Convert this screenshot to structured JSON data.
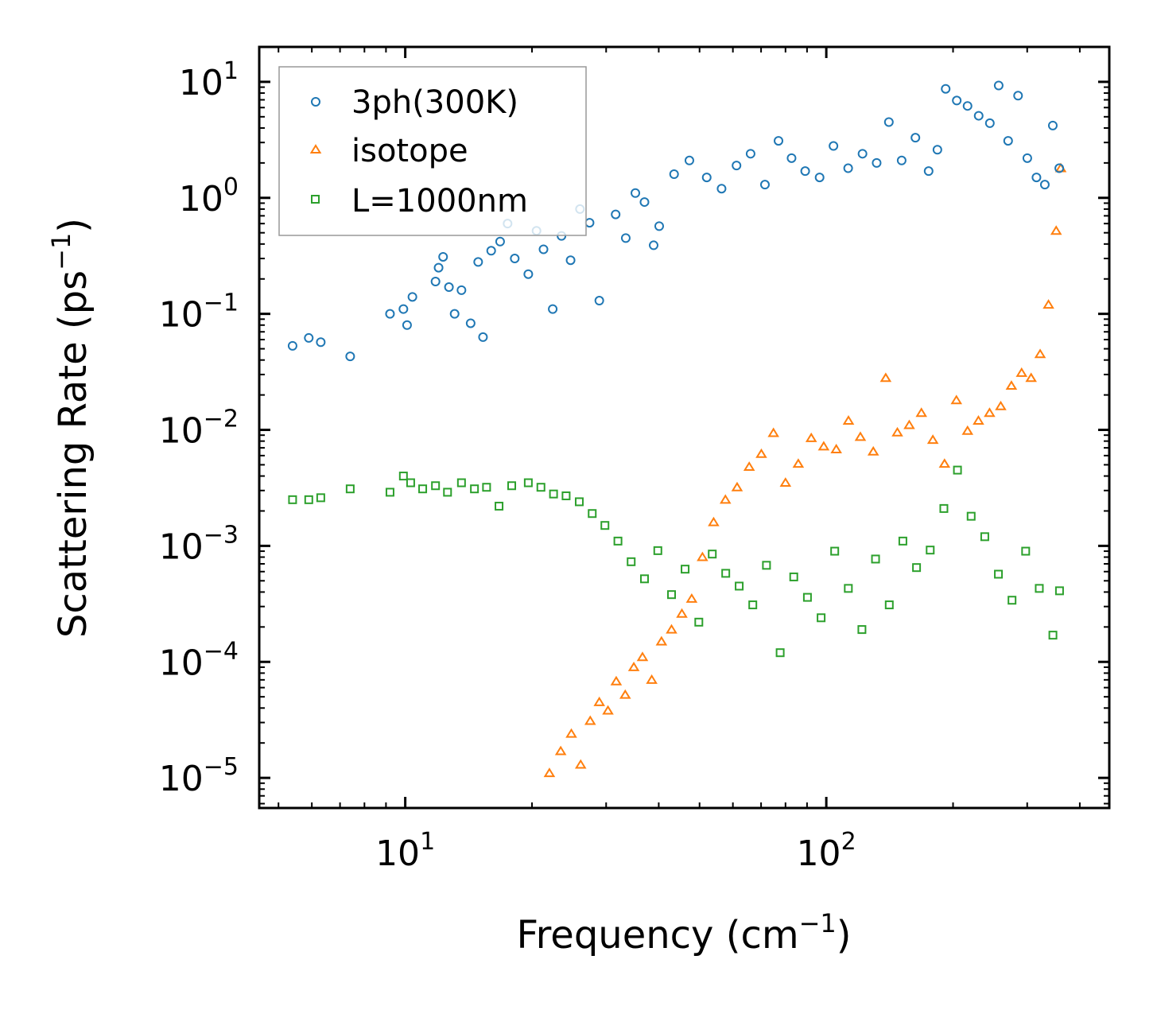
{
  "chart_data": {
    "type": "scatter",
    "xscale": "log",
    "yscale": "log",
    "xlim": [
      4.5,
      470
    ],
    "ylim": [
      5.5e-06,
      20
    ],
    "xlabel": "Frequency",
    "xlabel_unit": "cm",
    "xlabel_exp": "−1",
    "ylabel": "Scattering Rate",
    "ylabel_unit": "ps",
    "ylabel_exp": "−1",
    "x_ticks": [
      {
        "value": 10,
        "base": "10",
        "exp": "1"
      },
      {
        "value": 100,
        "base": "10",
        "exp": "2"
      }
    ],
    "y_ticks": [
      {
        "value": 10,
        "base": "10",
        "exp": "1"
      },
      {
        "value": 1,
        "base": "10",
        "exp": "0"
      },
      {
        "value": 0.1,
        "base": "10",
        "exp": "−1"
      },
      {
        "value": 0.01,
        "base": "10",
        "exp": "−2"
      },
      {
        "value": 0.001,
        "base": "10",
        "exp": "−3"
      },
      {
        "value": 0.0001,
        "base": "10",
        "exp": "−4"
      },
      {
        "value": 1e-05,
        "base": "10",
        "exp": "−5"
      }
    ],
    "legend_position": "top-left",
    "series": [
      {
        "name": "3ph(300K)",
        "marker": "circle",
        "color": "#1f77b4",
        "x": [
          5.4,
          5.9,
          6.3,
          7.4,
          9.2,
          9.9,
          10.1,
          10.4,
          11.8,
          12.0,
          12.3,
          12.7,
          13.1,
          13.6,
          14.3,
          14.9,
          15.3,
          16.0,
          16.8,
          17.5,
          18.2,
          19.6,
          20.5,
          21.3,
          22.4,
          23.5,
          24.7,
          26.0,
          27.4,
          28.9,
          31.6,
          33.4,
          35.2,
          37.0,
          38.9,
          40.1,
          43.5,
          47.3,
          52.0,
          56.4,
          61.2,
          66.1,
          71.5,
          77.0,
          82.7,
          89.1,
          96.4,
          104.0,
          112.7,
          121.9,
          131.7,
          140.8,
          151.0,
          162.8,
          175.0,
          183.6,
          192.1,
          204.1,
          216.5,
          230.1,
          244.6,
          256.7,
          270.3,
          285.4,
          300.2,
          315.6,
          330.4,
          345.1,
          357.5
        ],
        "y": [
          0.053,
          0.062,
          0.057,
          0.043,
          0.1,
          0.11,
          0.08,
          0.14,
          0.19,
          0.25,
          0.31,
          0.17,
          0.1,
          0.16,
          0.083,
          0.28,
          0.063,
          0.35,
          0.42,
          0.6,
          0.3,
          0.22,
          0.52,
          0.36,
          0.11,
          0.47,
          0.29,
          0.8,
          0.61,
          0.13,
          0.72,
          0.45,
          1.1,
          0.92,
          0.39,
          0.57,
          1.6,
          2.1,
          1.5,
          1.2,
          1.9,
          2.4,
          1.3,
          3.1,
          2.2,
          1.7,
          1.5,
          2.8,
          1.8,
          2.4,
          2.0,
          4.5,
          2.1,
          3.3,
          1.7,
          2.6,
          8.7,
          6.9,
          6.2,
          5.1,
          4.4,
          9.3,
          3.1,
          7.6,
          2.2,
          1.5,
          1.3,
          4.2,
          1.8
        ]
      },
      {
        "name": "isotope",
        "marker": "triangle",
        "color": "#ff7f0e",
        "x": [
          22.0,
          23.4,
          24.8,
          26.1,
          27.5,
          28.9,
          30.3,
          31.7,
          33.3,
          34.9,
          36.6,
          38.5,
          40.6,
          42.9,
          45.4,
          47.9,
          50.8,
          54.0,
          57.6,
          61.4,
          65.6,
          70.1,
          74.9,
          80.0,
          85.8,
          92.1,
          98.6,
          105.6,
          112.9,
          120.5,
          129.3,
          138.4,
          147.5,
          157.4,
          168.2,
          179.1,
          190.9,
          203.7,
          216.5,
          229.8,
          244.2,
          259.6,
          275.2,
          291.0,
          306.5,
          322.0,
          337.1,
          351.5,
          360.5
        ],
        "y": [
          1.1e-05,
          1.7e-05,
          2.4e-05,
          1.3e-05,
          3.1e-05,
          4.5e-05,
          3.8e-05,
          6.8e-05,
          5.2e-05,
          9e-05,
          0.00011,
          7e-05,
          0.00015,
          0.00019,
          0.00026,
          0.00035,
          0.0008,
          0.0016,
          0.0025,
          0.0032,
          0.0048,
          0.0062,
          0.0094,
          0.0035,
          0.0051,
          0.0085,
          0.0072,
          0.0068,
          0.012,
          0.0087,
          0.0065,
          0.028,
          0.0095,
          0.011,
          0.014,
          0.0082,
          0.0051,
          0.018,
          0.0098,
          0.012,
          0.014,
          0.016,
          0.024,
          0.031,
          0.028,
          0.045,
          0.12,
          0.52,
          1.8
        ]
      },
      {
        "name": "L=1000nm",
        "marker": "square",
        "color": "#2ca02c",
        "x": [
          5.4,
          5.9,
          6.3,
          7.4,
          9.2,
          9.9,
          10.3,
          11.0,
          11.8,
          12.6,
          13.6,
          14.6,
          15.6,
          16.7,
          17.9,
          19.6,
          21.0,
          22.5,
          24.1,
          25.9,
          27.8,
          29.8,
          32.0,
          34.4,
          37.0,
          39.8,
          42.9,
          46.2,
          49.8,
          53.6,
          57.7,
          62.1,
          66.9,
          72.1,
          77.7,
          83.7,
          90.2,
          97.2,
          104.7,
          112.8,
          121.5,
          130.9,
          141.1,
          152.0,
          163.8,
          176.5,
          190.2,
          204.9,
          220.8,
          237.9,
          256.3,
          276.1,
          297.5,
          320.5,
          345.3,
          358.0
        ],
        "y": [
          0.0025,
          0.0025,
          0.0026,
          0.0031,
          0.0029,
          0.004,
          0.0035,
          0.0031,
          0.0033,
          0.0029,
          0.0035,
          0.0031,
          0.0032,
          0.0022,
          0.0033,
          0.0035,
          0.0032,
          0.0028,
          0.0027,
          0.0024,
          0.0019,
          0.0015,
          0.0011,
          0.00073,
          0.00052,
          0.00091,
          0.00038,
          0.00063,
          0.00022,
          0.00085,
          0.00058,
          0.00045,
          0.00031,
          0.00068,
          0.00012,
          0.00054,
          0.00036,
          0.00024,
          0.0009,
          0.00043,
          0.00019,
          0.00077,
          0.00031,
          0.0011,
          0.00065,
          0.00092,
          0.0021,
          0.0045,
          0.0018,
          0.0012,
          0.00057,
          0.00034,
          0.0009,
          0.00043,
          0.00017,
          0.00041
        ]
      }
    ]
  }
}
